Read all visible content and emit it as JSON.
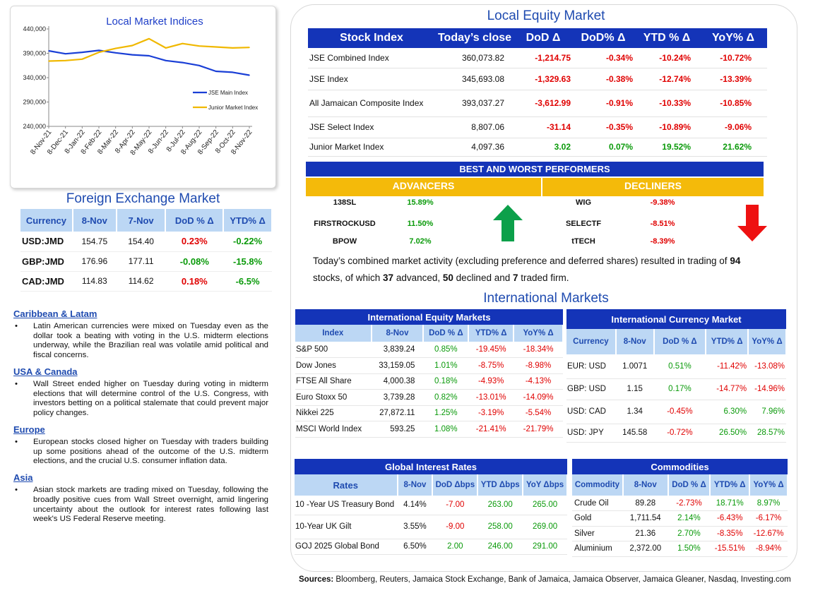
{
  "chart_data": {
    "type": "line",
    "title": "Local Market Indices",
    "categories": [
      "8-Nov-21",
      "8-Dec-21",
      "8-Jan-22",
      "8-Feb-22",
      "8-Mar-22",
      "8-Apr-22",
      "8-May-22",
      "8-Jun-22",
      "8-Jul-22",
      "8-Aug-22",
      "8-Sep-22",
      "8-Oct-22",
      "8-Nov-22"
    ],
    "yticks": [
      "440,000",
      "390,000",
      "340,000",
      "290,000",
      "240,000"
    ],
    "ylim": [
      240000,
      440000
    ],
    "legend_position": "right",
    "series": [
      {
        "name": "JSE Main Index",
        "color": "#1a3fd6",
        "values": [
          395000,
          389000,
          392000,
          396000,
          391000,
          387000,
          385000,
          375000,
          371000,
          365000,
          353000,
          351000,
          345000
        ]
      },
      {
        "name": "Junior Market Index",
        "color": "#f0b800",
        "values": [
          374000,
          375000,
          378000,
          392000,
          400000,
          406000,
          420000,
          401000,
          410000,
          405000,
          403000,
          401000,
          402000
        ]
      }
    ]
  },
  "fx": {
    "title": "Foreign Exchange Market",
    "headers": [
      "Currency",
      "8-Nov",
      "7-Nov",
      "DoD % Δ",
      "YTD% Δ"
    ],
    "rows": [
      {
        "cur": "USD:JMD",
        "a": "154.75",
        "b": "154.40",
        "dod": "0.23%",
        "ytd": "-0.22%",
        "dod_color": "neg",
        "ytd_color": "pos"
      },
      {
        "cur": "GBP:JMD",
        "a": "176.96",
        "b": "177.11",
        "dod": "-0.08%",
        "ytd": "-15.8%",
        "dod_color": "pos",
        "ytd_color": "pos"
      },
      {
        "cur": "CAD:JMD",
        "a": "114.83",
        "b": "114.62",
        "dod": "0.18%",
        "ytd": "-6.5%",
        "dod_color": "neg",
        "ytd_color": "pos"
      }
    ]
  },
  "news": [
    {
      "head": "Caribbean & Latam",
      "text": "Latin American currencies were mixed on Tuesday even as the dollar took a beating with voting in the U.S. midterm elections underway, while the Brazilian real was volatile amid political and fiscal concerns."
    },
    {
      "head": "USA & Canada",
      "text": "Wall Street ended higher on Tuesday during voting in midterm elections that will determine control of the U.S. Congress, with investors betting on a political stalemate that could prevent major policy changes."
    },
    {
      "head": "Europe",
      "text": "European stocks closed higher on Tuesday with traders building up some positions ahead of the outcome of the U.S. midterm elections, and the crucial U.S. consumer inflation data."
    },
    {
      "head": "Asia",
      "text": "Asian stock markets are trading mixed on Tuesday, following the broadly positive cues from Wall Street overnight, amid lingering uncertainty about the outlook for interest rates following last week's US Federal Reserve meeting."
    }
  ],
  "equity": {
    "title": "Local Equity Market",
    "headers": [
      "Stock Index",
      "Today’s close",
      "DoD  Δ",
      "DoD% Δ",
      "YTD % Δ",
      "YoY% Δ"
    ],
    "rows": [
      {
        "name": "JSE Combined Index",
        "close": "360,073.82",
        "dod": "-1,214.75",
        "dodp": "-0.34%",
        "ytd": "-10.24%",
        "yoy": "-10.72%",
        "c": [
          "neg",
          "neg",
          "neg",
          "neg"
        ]
      },
      {
        "name": "JSE Index",
        "close": "345,693.08",
        "dod": "-1,329.63",
        "dodp": "-0.38%",
        "ytd": "-12.74%",
        "yoy": "-13.39%",
        "c": [
          "neg",
          "neg",
          "neg",
          "neg"
        ]
      },
      {
        "name": "All Jamaican Composite Index",
        "close": "393,037.27",
        "dod": "-3,612.99",
        "dodp": "-0.91%",
        "ytd": "-10.33%",
        "yoy": "-10.85%",
        "c": [
          "neg",
          "neg",
          "neg",
          "neg"
        ]
      },
      {
        "name": "JSE Select Index",
        "close": "8,807.06",
        "dod": "-31.14",
        "dodp": "-0.35%",
        "ytd": "-10.89%",
        "yoy": "-9.06%",
        "c": [
          "neg",
          "neg",
          "neg",
          "neg"
        ]
      },
      {
        "name": "Junior Market Index",
        "close": "4,097.36",
        "dod": "3.02",
        "dodp": "0.07%",
        "ytd": "19.52%",
        "yoy": "21.62%",
        "c": [
          "pos",
          "pos",
          "pos",
          "pos"
        ]
      }
    ]
  },
  "performers": {
    "title": "BEST AND WORST PERFORMERS",
    "advancers_label": "ADVANCERS",
    "decliners_label": "DECLINERS",
    "advancers": [
      {
        "sym": "138SL",
        "pct": "15.89%"
      },
      {
        "sym": "FIRSTROCKUSD",
        "pct": "11.50%"
      },
      {
        "sym": "BPOW",
        "pct": "7.02%"
      }
    ],
    "decliners": [
      {
        "sym": "WIG",
        "pct": "-9.38%"
      },
      {
        "sym": "SELECTF",
        "pct": "-8.51%"
      },
      {
        "sym": "tTECH",
        "pct": "-8.39%"
      }
    ]
  },
  "summary": {
    "p1": "Today’s combined market activity (excluding preference and deferred shares) resulted in trading of ",
    "n_total": "94",
    "p2": "stocks, of which ",
    "n_adv": "37",
    "p3": " advanced, ",
    "n_dec": "50",
    "p4": " declined and ",
    "n_firm": "7",
    "p5": " traded firm."
  },
  "intl_title": "International Markets",
  "intl_equity": {
    "caption": "International Equity Markets",
    "headers": [
      "Index",
      "8-Nov",
      "DoD % Δ",
      "YTD% Δ",
      "YoY% Δ"
    ],
    "rows": [
      {
        "n": "S&P 500",
        "v": "3,839.24",
        "d": "0.85%",
        "y": "-19.45%",
        "yy": "-18.34%"
      },
      {
        "n": "Dow Jones",
        "v": "33,159.05",
        "d": "1.01%",
        "y": "-8.75%",
        "yy": "-8.98%"
      },
      {
        "n": "FTSE All Share",
        "v": "4,000.38",
        "d": "0.18%",
        "y": "-4.93%",
        "yy": "-4.13%"
      },
      {
        "n": "Euro Stoxx 50",
        "v": "3,739.28",
        "d": "0.82%",
        "y": "-13.01%",
        "yy": "-14.09%"
      },
      {
        "n": "Nikkei 225",
        "v": "27,872.11",
        "d": "1.25%",
        "y": "-3.19%",
        "yy": "-5.54%"
      },
      {
        "n": "MSCI World Index",
        "v": "593.25",
        "d": "1.08%",
        "y": "-21.41%",
        "yy": "-21.79%"
      }
    ]
  },
  "intl_currency": {
    "caption": "International Currency Market",
    "headers": [
      "Currency",
      "8-Nov",
      "DoD % Δ",
      "YTD% Δ",
      "YoY% Δ"
    ],
    "rows": [
      {
        "n": "EUR: USD",
        "v": "1.0071",
        "d": "0.51%",
        "y": "-11.42%",
        "yy": "-13.08%",
        "c": [
          "pos",
          "neg",
          "neg"
        ]
      },
      {
        "n": "GBP: USD",
        "v": "1.15",
        "d": "0.17%",
        "y": "-14.77%",
        "yy": "-14.96%",
        "c": [
          "pos",
          "neg",
          "neg"
        ]
      },
      {
        "n": "USD: CAD",
        "v": "1.34",
        "d": "-0.45%",
        "y": "6.30%",
        "yy": "7.96%",
        "c": [
          "neg",
          "pos",
          "pos"
        ]
      },
      {
        "n": "USD: JPY",
        "v": "145.58",
        "d": "-0.72%",
        "y": "26.50%",
        "yy": "28.57%",
        "c": [
          "neg",
          "pos",
          "pos"
        ]
      }
    ]
  },
  "rates": {
    "caption": "Global Interest Rates",
    "headers": [
      "Rates",
      "8-Nov",
      "DoD Δbps",
      "YTD Δbps",
      "YoY Δbps"
    ],
    "rows": [
      {
        "n": "10 -Year US Treasury Bond",
        "v": "4.14%",
        "d": "-7.00",
        "y": "263.00",
        "yy": "265.00",
        "c": [
          "neg",
          "pos",
          "pos"
        ]
      },
      {
        "n": "10-Year UK Gilt",
        "v": "3.55%",
        "d": "-9.00",
        "y": "258.00",
        "yy": "269.00",
        "c": [
          "neg",
          "pos",
          "pos"
        ]
      },
      {
        "n": "GOJ 2025 Global Bond",
        "v": "6.50%",
        "d": "2.00",
        "y": "246.00",
        "yy": "291.00",
        "c": [
          "pos",
          "pos",
          "pos"
        ]
      }
    ]
  },
  "commodities": {
    "caption": "Commodities",
    "headers": [
      "Commodity",
      "8-Nov",
      "DoD % Δ",
      "YTD% Δ",
      "YoY% Δ"
    ],
    "rows": [
      {
        "n": "Crude Oil",
        "v": "89.28",
        "d": "-2.73%",
        "y": "18.71%",
        "yy": "8.97%",
        "c": [
          "neg",
          "pos",
          "pos"
        ]
      },
      {
        "n": "Gold",
        "v": "1,711.54",
        "d": "2.14%",
        "y": "-6.43%",
        "yy": "-6.17%",
        "c": [
          "pos",
          "neg",
          "neg"
        ]
      },
      {
        "n": "Silver",
        "v": "21.36",
        "d": "2.70%",
        "y": "-8.35%",
        "yy": "-12.67%",
        "c": [
          "pos",
          "neg",
          "neg"
        ]
      },
      {
        "n": "Aluminium",
        "v": "2,372.00",
        "d": "1.50%",
        "y": "-15.51%",
        "yy": "-8.94%",
        "c": [
          "pos",
          "neg",
          "neg"
        ]
      }
    ]
  },
  "sources": {
    "label": "Sources:",
    "text": " Bloomberg, Reuters, Jamaica Stock Exchange, Bank of Jamaica, Jamaica Observer, Jamaica Gleaner, Nasdaq, Investing.com"
  }
}
